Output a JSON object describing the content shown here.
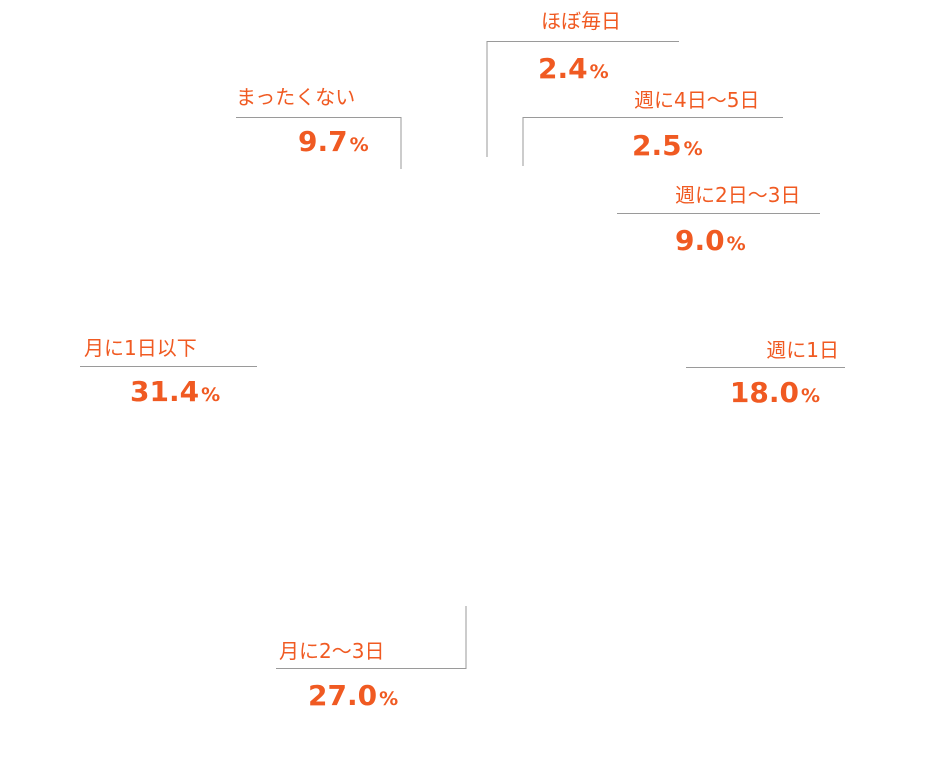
{
  "chart_data": {
    "type": "pie",
    "title": "",
    "unit": "%",
    "accent_color": "#f05a22",
    "leader_color": "#9a9a9a",
    "slices": [
      {
        "label": "ほぼ毎日",
        "value": 2.4,
        "value_text": "2.4"
      },
      {
        "label": "週に4日〜5日",
        "value": 2.5,
        "value_text": "2.5"
      },
      {
        "label": "週に2日〜3日",
        "value": 9.0,
        "value_text": "9.0"
      },
      {
        "label": "週に1日",
        "value": 18.0,
        "value_text": "18.0"
      },
      {
        "label": "月に2〜3日",
        "value": 27.0,
        "value_text": "27.0"
      },
      {
        "label": "月に1日以下",
        "value": 31.4,
        "value_text": "31.4"
      },
      {
        "label": "まったくない",
        "value": 9.7,
        "value_text": "9.7"
      }
    ]
  }
}
